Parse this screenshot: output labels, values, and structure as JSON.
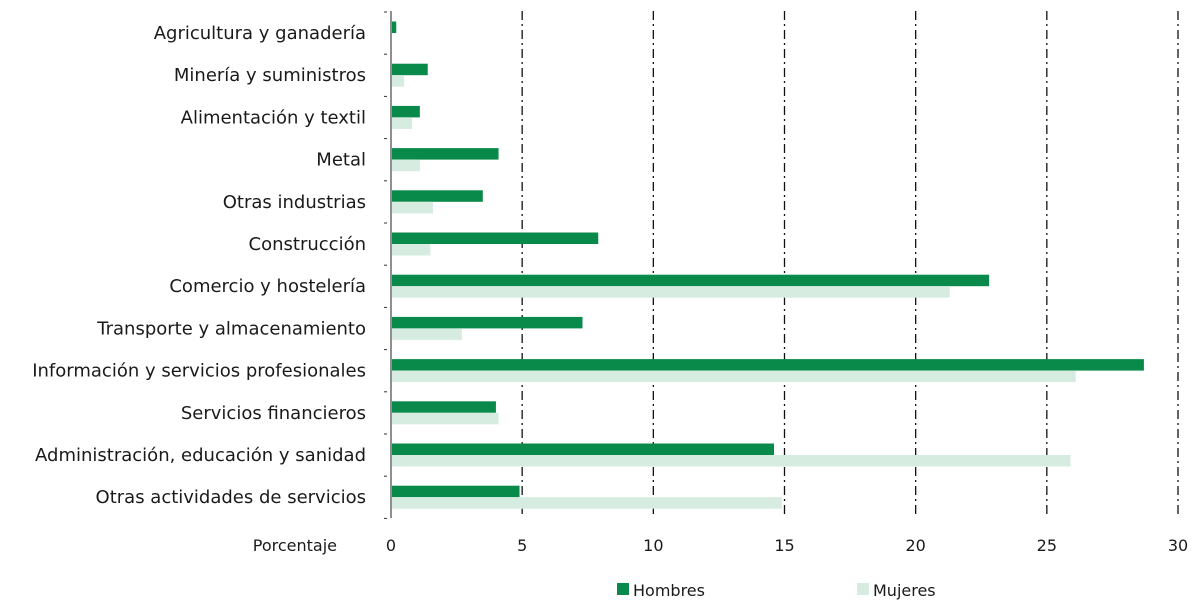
{
  "chart_data": {
    "type": "bar",
    "orientation": "horizontal",
    "categories": [
      "Agricultura y ganadería",
      "Minería y suministros",
      "Alimentación y textil",
      "Metal",
      "Otras industrias",
      "Construcción",
      "Comercio y hostelería",
      "Transporte y almacenamiento",
      "Información y servicios profesionales",
      "Servicios financieros",
      "Administración, educación y sanidad",
      "Otras actividades de servicios"
    ],
    "series": [
      {
        "name": "Hombres",
        "color": "#0a8a4a",
        "values": [
          0.2,
          1.4,
          1.1,
          4.1,
          3.5,
          7.9,
          22.8,
          7.3,
          28.7,
          4.0,
          14.6,
          4.9
        ]
      },
      {
        "name": "Mujeres",
        "color": "#d6ece0",
        "values": [
          0.0,
          0.5,
          0.8,
          1.1,
          1.6,
          1.5,
          21.3,
          2.7,
          26.1,
          4.1,
          25.9,
          14.9
        ]
      }
    ],
    "xlabel": "Porcentaje",
    "xlim": [
      0,
      30
    ],
    "xticks": [
      0,
      5,
      10,
      15,
      20,
      25,
      30
    ],
    "grid": "vertical dash-dot",
    "legend_position": "bottom"
  }
}
